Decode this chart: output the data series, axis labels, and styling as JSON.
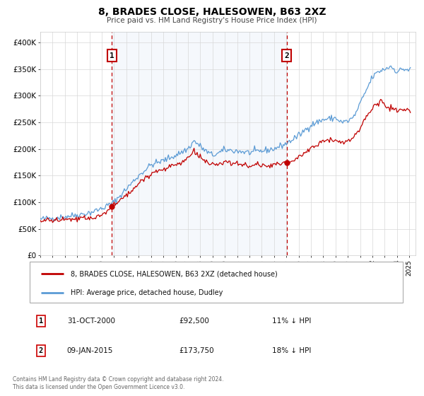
{
  "title": "8, BRADES CLOSE, HALESOWEN, B63 2XZ",
  "subtitle": "Price paid vs. HM Land Registry's House Price Index (HPI)",
  "xlim": [
    1995.0,
    2025.5
  ],
  "ylim": [
    0,
    420000
  ],
  "yticks": [
    0,
    50000,
    100000,
    150000,
    200000,
    250000,
    300000,
    350000,
    400000
  ],
  "ytick_labels": [
    "£0",
    "£50K",
    "£100K",
    "£150K",
    "£200K",
    "£250K",
    "£300K",
    "£350K",
    "£400K"
  ],
  "xticks": [
    1995,
    1996,
    1997,
    1998,
    1999,
    2000,
    2001,
    2002,
    2003,
    2004,
    2005,
    2006,
    2007,
    2008,
    2009,
    2010,
    2011,
    2012,
    2013,
    2014,
    2015,
    2016,
    2017,
    2018,
    2019,
    2020,
    2021,
    2022,
    2023,
    2024,
    2025
  ],
  "hpi_color": "#5b9bd5",
  "price_color": "#c00000",
  "sale1_x": 2000.83,
  "sale1_y": 92500,
  "sale2_x": 2015.03,
  "sale2_y": 173750,
  "legend_label_price": "8, BRADES CLOSE, HALESOWEN, B63 2XZ (detached house)",
  "legend_label_hpi": "HPI: Average price, detached house, Dudley",
  "annotation1_date": "31-OCT-2000",
  "annotation1_price": "£92,500",
  "annotation1_hpi": "11% ↓ HPI",
  "annotation2_date": "09-JAN-2015",
  "annotation2_price": "£173,750",
  "annotation2_hpi": "18% ↓ HPI",
  "footer1": "Contains HM Land Registry data © Crown copyright and database right 2024.",
  "footer2": "This data is licensed under the Open Government Licence v3.0.",
  "hpi_anchors_x": [
    1995.0,
    1996.0,
    1997.0,
    1998.0,
    1999.0,
    2000.0,
    2001.0,
    2002.0,
    2003.0,
    2004.0,
    2005.0,
    2006.0,
    2007.0,
    2007.5,
    2008.0,
    2008.5,
    2009.0,
    2009.5,
    2010.0,
    2011.0,
    2012.0,
    2013.0,
    2014.0,
    2015.0,
    2016.0,
    2017.0,
    2018.0,
    2019.0,
    2019.5,
    2020.0,
    2020.5,
    2021.0,
    2021.5,
    2022.0,
    2022.5,
    2023.0,
    2023.5,
    2024.0,
    2024.5,
    2025.0
  ],
  "hpi_anchors_y": [
    68000,
    70000,
    73000,
    76000,
    80000,
    88000,
    100000,
    125000,
    150000,
    170000,
    178000,
    188000,
    200000,
    215000,
    205000,
    195000,
    188000,
    192000,
    198000,
    196000,
    193000,
    196000,
    200000,
    210000,
    225000,
    245000,
    255000,
    258000,
    250000,
    252000,
    260000,
    285000,
    310000,
    335000,
    345000,
    350000,
    355000,
    345000,
    350000,
    348000
  ],
  "price_anchors_x": [
    1995.0,
    1996.0,
    1997.0,
    1998.0,
    1999.0,
    2000.0,
    2000.83,
    2001.0,
    2002.0,
    2003.0,
    2004.0,
    2005.0,
    2006.0,
    2007.0,
    2007.5,
    2008.0,
    2008.5,
    2009.0,
    2009.5,
    2010.0,
    2011.0,
    2012.0,
    2013.0,
    2013.5,
    2014.0,
    2014.5,
    2015.03,
    2015.5,
    2016.0,
    2017.0,
    2018.0,
    2019.0,
    2019.5,
    2020.0,
    2020.5,
    2021.0,
    2021.5,
    2022.0,
    2022.5,
    2022.75,
    2023.0,
    2023.5,
    2024.0,
    2024.5,
    2025.0
  ],
  "price_anchors_y": [
    65000,
    66000,
    67000,
    68000,
    70000,
    75000,
    92500,
    95000,
    112000,
    135000,
    155000,
    162000,
    170000,
    182000,
    195000,
    185000,
    175000,
    168000,
    170000,
    176000,
    172000,
    168000,
    170000,
    168000,
    172000,
    170000,
    173750,
    176000,
    185000,
    202000,
    215000,
    218000,
    212000,
    214000,
    222000,
    240000,
    260000,
    278000,
    285000,
    290000,
    282000,
    276000,
    270000,
    275000,
    272000
  ],
  "hpi_noise_std": 3000,
  "price_noise_std": 2500,
  "noise_seed": 42
}
